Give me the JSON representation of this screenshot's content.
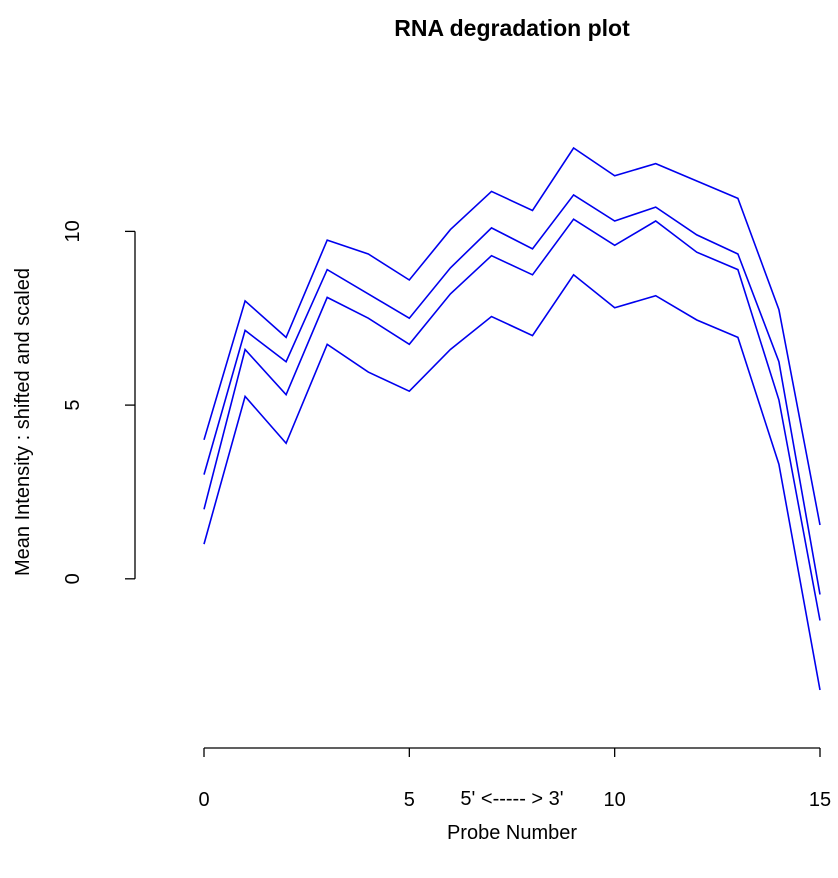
{
  "chart_data": {
    "type": "line",
    "title": "RNA degradation plot",
    "xlabel_line1": "5' <----- > 3'",
    "xlabel": "Probe Number",
    "ylabel": "Mean Intensity : shifted and scaled",
    "x": [
      0,
      1,
      2,
      3,
      4,
      5,
      6,
      7,
      8,
      9,
      10,
      11,
      12,
      13,
      14,
      15
    ],
    "xlim": [
      0,
      15
    ],
    "ylim": [
      -3.2,
      12.4
    ],
    "x_ticks": [
      0,
      5,
      10,
      15
    ],
    "y_ticks": [
      0,
      5,
      10
    ],
    "x_tick_labels": [
      "0",
      "5",
      "10",
      "15"
    ],
    "y_tick_labels": [
      "0",
      "5",
      "10"
    ],
    "grid": false,
    "series_color": "#0000ee",
    "series": [
      {
        "values": [
          4.0,
          8.0,
          6.95,
          9.75,
          9.35,
          8.6,
          10.05,
          11.15,
          10.6,
          12.4,
          11.6,
          11.95,
          11.45,
          10.95,
          7.75,
          1.55
        ]
      },
      {
        "values": [
          3.0,
          7.15,
          6.25,
          8.9,
          8.2,
          7.5,
          8.95,
          10.1,
          9.5,
          11.05,
          10.3,
          10.7,
          9.9,
          9.35,
          6.25,
          -0.45
        ]
      },
      {
        "values": [
          2.0,
          6.6,
          5.3,
          8.1,
          7.5,
          6.75,
          8.2,
          9.3,
          8.75,
          10.35,
          9.6,
          10.3,
          9.4,
          8.9,
          5.15,
          -1.2
        ]
      },
      {
        "values": [
          1.0,
          5.25,
          3.9,
          6.75,
          5.95,
          5.4,
          6.6,
          7.55,
          7.0,
          8.75,
          7.8,
          8.15,
          7.45,
          6.95,
          3.3,
          -3.2
        ]
      }
    ]
  }
}
